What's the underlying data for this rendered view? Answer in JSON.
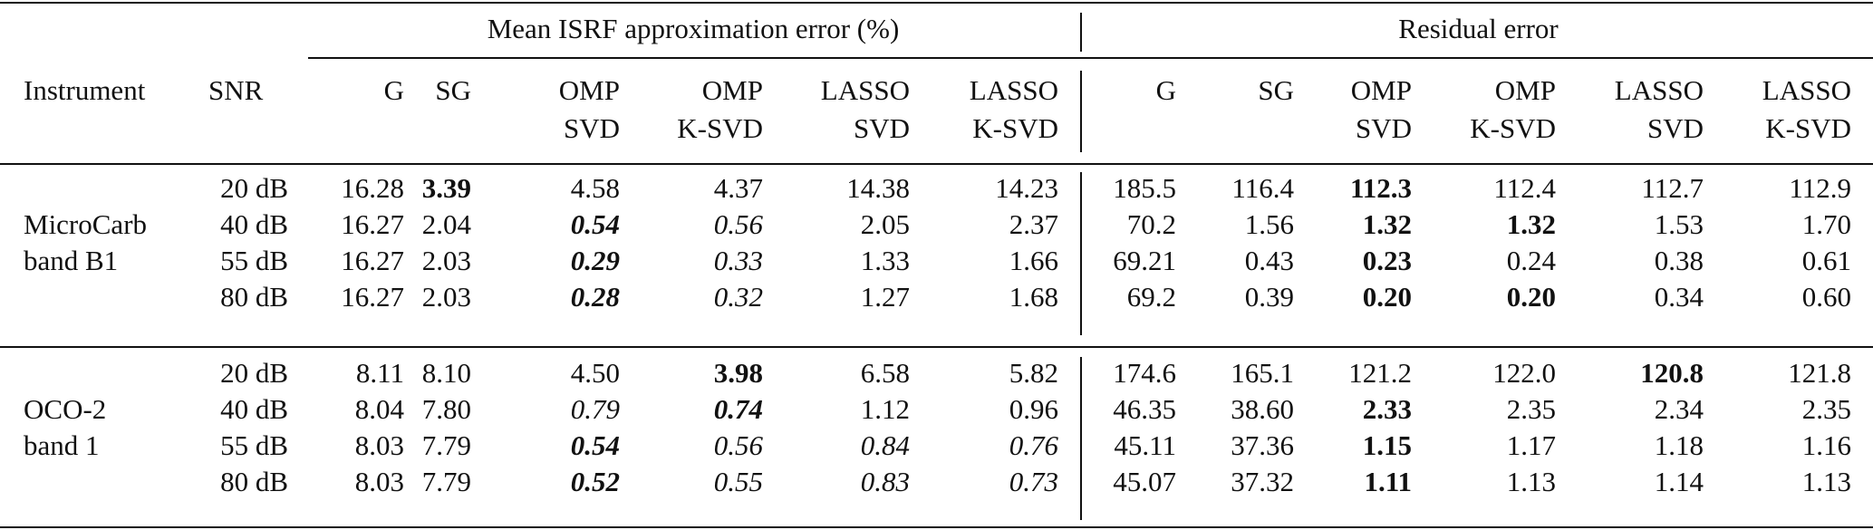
{
  "header": {
    "group_isrf": "Mean ISRF approximation error (%)",
    "group_residual": "Residual error",
    "col_instrument": "Instrument",
    "col_snr": "SNR",
    "method_line1": [
      "G",
      "SG",
      "OMP",
      "OMP",
      "LASSO",
      "LASSO"
    ],
    "method_line2": [
      "",
      "",
      "SVD",
      "K-SVD",
      "SVD",
      "K-SVD"
    ]
  },
  "sections": [
    {
      "instrument_line1": "MicroCarb",
      "instrument_line2": "band B1",
      "rows": [
        {
          "snr": "20 dB",
          "isrf": [
            "16.28",
            "3.39",
            "4.58",
            "4.37",
            "14.38",
            "14.23"
          ],
          "isrf_style": [
            "",
            "b",
            "",
            "",
            "",
            ""
          ],
          "residual": [
            "185.5",
            "116.4",
            "112.3",
            "112.4",
            "112.7",
            "112.9"
          ],
          "residual_style": [
            "",
            "",
            "b",
            "",
            "",
            ""
          ]
        },
        {
          "snr": "40 dB",
          "isrf": [
            "16.27",
            "2.04",
            "0.54",
            "0.56",
            "2.05",
            "2.37"
          ],
          "isrf_style": [
            "",
            "",
            "bi",
            "i",
            "",
            ""
          ],
          "residual": [
            "70.2",
            "1.56",
            "1.32",
            "1.32",
            "1.53",
            "1.70"
          ],
          "residual_style": [
            "",
            "",
            "b",
            "b",
            "",
            ""
          ]
        },
        {
          "snr": "55 dB",
          "isrf": [
            "16.27",
            "2.03",
            "0.29",
            "0.33",
            "1.33",
            "1.66"
          ],
          "isrf_style": [
            "",
            "",
            "bi",
            "i",
            "",
            ""
          ],
          "residual": [
            "69.21",
            "0.43",
            "0.23",
            "0.24",
            "0.38",
            "0.61"
          ],
          "residual_style": [
            "",
            "",
            "b",
            "",
            "",
            ""
          ]
        },
        {
          "snr": "80 dB",
          "isrf": [
            "16.27",
            "2.03",
            "0.28",
            "0.32",
            "1.27",
            "1.68"
          ],
          "isrf_style": [
            "",
            "",
            "bi",
            "i",
            "",
            ""
          ],
          "residual": [
            "69.2",
            "0.39",
            "0.20",
            "0.20",
            "0.34",
            "0.60"
          ],
          "residual_style": [
            "",
            "",
            "b",
            "b",
            "",
            ""
          ]
        }
      ]
    },
    {
      "instrument_line1": "OCO-2",
      "instrument_line2": "band 1",
      "rows": [
        {
          "snr": "20 dB",
          "isrf": [
            "8.11",
            "8.10",
            "4.50",
            "3.98",
            "6.58",
            "5.82"
          ],
          "isrf_style": [
            "",
            "",
            "",
            "b",
            "",
            ""
          ],
          "residual": [
            "174.6",
            "165.1",
            "121.2",
            "122.0",
            "120.8",
            "121.8"
          ],
          "residual_style": [
            "",
            "",
            "",
            "",
            "b",
            ""
          ]
        },
        {
          "snr": "40 dB",
          "isrf": [
            "8.04",
            "7.80",
            "0.79",
            "0.74",
            "1.12",
            "0.96"
          ],
          "isrf_style": [
            "",
            "",
            "i",
            "bi",
            "",
            ""
          ],
          "residual": [
            "46.35",
            "38.60",
            "2.33",
            "2.35",
            "2.34",
            "2.35"
          ],
          "residual_style": [
            "",
            "",
            "b",
            "",
            "",
            ""
          ]
        },
        {
          "snr": "55 dB",
          "isrf": [
            "8.03",
            "7.79",
            "0.54",
            "0.56",
            "0.84",
            "0.76"
          ],
          "isrf_style": [
            "",
            "",
            "bi",
            "i",
            "i",
            "i"
          ],
          "residual": [
            "45.11",
            "37.36",
            "1.15",
            "1.17",
            "1.18",
            "1.16"
          ],
          "residual_style": [
            "",
            "",
            "b",
            "",
            "",
            ""
          ]
        },
        {
          "snr": "80 dB",
          "isrf": [
            "8.03",
            "7.79",
            "0.52",
            "0.55",
            "0.83",
            "0.73"
          ],
          "isrf_style": [
            "",
            "",
            "bi",
            "i",
            "i",
            "i"
          ],
          "residual": [
            "45.07",
            "37.32",
            "1.11",
            "1.13",
            "1.14",
            "1.13"
          ],
          "residual_style": [
            "",
            "",
            "b",
            "",
            "",
            ""
          ]
        }
      ]
    }
  ]
}
